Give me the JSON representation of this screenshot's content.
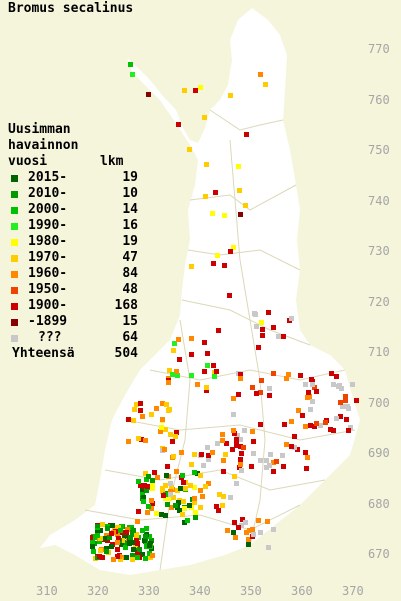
{
  "title": "Bromus secalinus",
  "legend": {
    "heading": [
      "Uusimman",
      "havainnon",
      "vuosi"
    ],
    "count_header": "lkm",
    "rows": [
      {
        "label": "2015-",
        "count": "19",
        "color": "#006400"
      },
      {
        "label": "2010-",
        "count": "10",
        "color": "#009900"
      },
      {
        "label": "2000-",
        "count": "14",
        "color": "#00c000"
      },
      {
        "label": "1990-",
        "count": "16",
        "color": "#22ee22"
      },
      {
        "label": "1980-",
        "count": "19",
        "color": "#ffff00"
      },
      {
        "label": "1970-",
        "count": "47",
        "color": "#ffcc00"
      },
      {
        "label": "1960-",
        "count": "84",
        "color": "#ff8800"
      },
      {
        "label": "1950-",
        "count": "48",
        "color": "#ee4400"
      },
      {
        "label": "1900-",
        "count": "168",
        "color": "#cc0000"
      },
      {
        "label": "-1899",
        "count": "15",
        "color": "#880000"
      },
      {
        "label": "???",
        "count": "64",
        "color": "#c8c8c8"
      }
    ],
    "total_label": "Yhteensä",
    "total_count": "504"
  },
  "y_ticks": [
    "770",
    "760",
    "750",
    "740",
    "730",
    "720",
    "710",
    "700",
    "690",
    "680",
    "670"
  ],
  "x_ticks": [
    "310",
    "320",
    "330",
    "340",
    "350",
    "360",
    "370"
  ],
  "colors": {
    "background": "#f5f5dc",
    "land": "#ffffff",
    "borders": "#dcd8b8",
    "grid_labels": "#a5a5a5"
  }
}
